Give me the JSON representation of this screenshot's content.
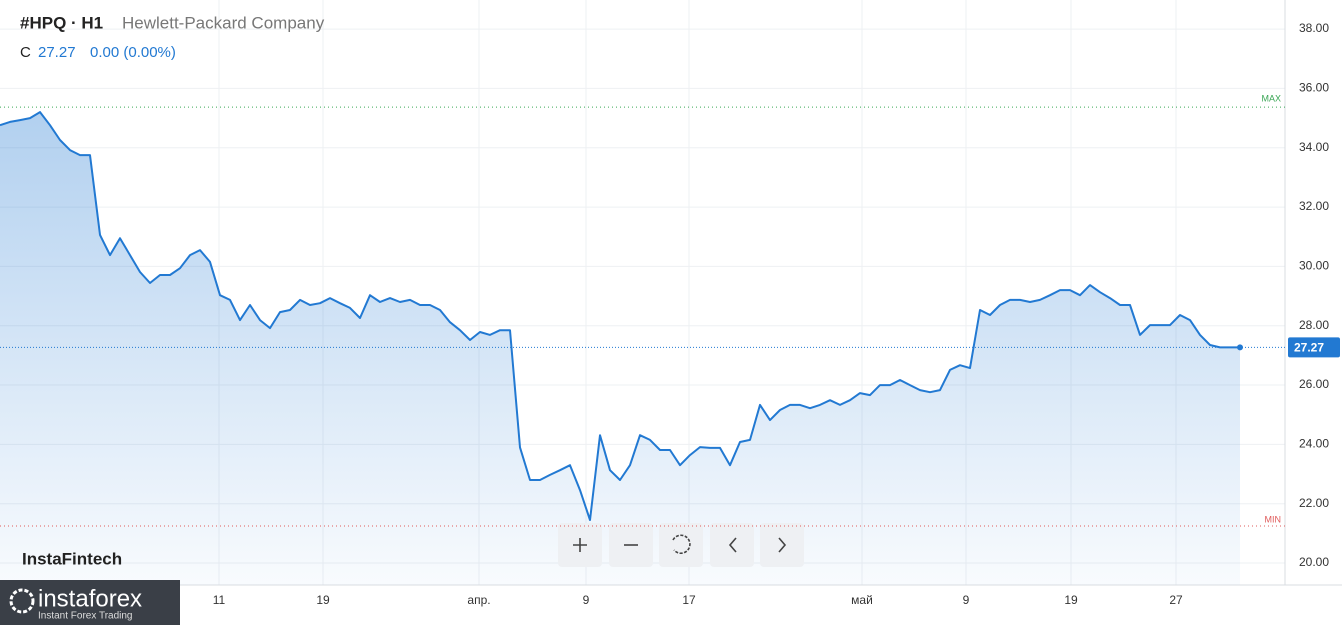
{
  "header": {
    "symbol": "#HPQ · H1",
    "company": "Hewlett-Packard Company",
    "price_prefix": "C",
    "change": "0.00 (0.00%)"
  },
  "watermark": "InstaFintech",
  "logo": {
    "name": "instaforex",
    "tagline": "Instant Forex Trading"
  },
  "chart_data": {
    "type": "line",
    "series": [
      {
        "color": "#2279d2",
        "values": [
          34.76,
          34.87,
          34.93,
          35.0,
          35.2,
          34.76,
          34.26,
          33.92,
          33.75,
          33.75,
          31.06,
          30.38,
          30.95,
          30.38,
          29.81,
          29.44,
          29.71,
          29.71,
          29.94,
          30.38,
          30.55,
          30.15,
          29.03,
          28.87,
          28.19,
          28.7,
          28.19,
          27.92,
          28.46,
          28.53,
          28.87,
          28.7,
          28.76,
          28.93,
          28.76,
          28.6,
          28.26,
          29.03,
          28.8,
          28.93,
          28.8,
          28.87,
          28.7,
          28.7,
          28.53,
          28.12,
          27.85,
          27.52,
          27.79,
          27.69,
          27.85,
          27.85,
          23.9,
          22.8,
          22.8,
          22.97,
          23.13,
          23.3,
          22.46,
          21.45,
          24.31,
          23.13,
          22.8,
          23.3,
          24.31,
          24.15,
          23.81,
          23.81,
          23.3,
          23.64,
          23.91,
          23.88,
          23.88,
          23.3,
          24.08,
          24.15,
          25.33,
          24.82,
          25.16,
          25.33,
          25.33,
          25.22,
          25.33,
          25.49,
          25.33,
          25.49,
          25.73,
          25.66,
          26.0,
          26.0,
          26.17,
          26.0,
          25.83,
          25.76,
          25.83,
          26.51,
          26.67,
          26.57,
          28.53,
          28.36,
          28.7,
          28.87,
          28.87,
          28.8,
          28.87,
          29.03,
          29.2,
          29.2,
          29.03,
          29.37,
          29.13,
          28.93,
          28.7,
          28.7,
          27.69,
          28.02,
          28.02,
          28.02,
          28.36,
          28.19,
          27.69,
          27.35,
          27.27,
          27.27,
          27.27
        ]
      }
    ],
    "xlim": [
      0,
      128.5
    ],
    "xticks": [
      {
        "value": 21.9,
        "label": "11"
      },
      {
        "value": 32.3,
        "label": "19"
      },
      {
        "value": 47.9,
        "label": "апр."
      },
      {
        "value": 58.6,
        "label": "9"
      },
      {
        "value": 68.9,
        "label": "17"
      },
      {
        "value": 86.2,
        "label": "май"
      },
      {
        "value": 96.6,
        "label": "9"
      },
      {
        "value": 107.1,
        "label": "19"
      },
      {
        "value": 117.6,
        "label": "27"
      }
    ],
    "ylim": [
      19.26,
      38.98
    ],
    "yticks": [
      {
        "value": 20,
        "label": "20.00"
      },
      {
        "value": 22,
        "label": "22.00"
      },
      {
        "value": 24,
        "label": "24.00"
      },
      {
        "value": 26,
        "label": "26.00"
      },
      {
        "value": 28,
        "label": "28.00"
      },
      {
        "value": 30,
        "label": "30.00"
      },
      {
        "value": 32,
        "label": "32.00"
      },
      {
        "value": 34,
        "label": "34.00"
      },
      {
        "value": 36,
        "label": "36.00"
      },
      {
        "value": 38,
        "label": "38.00"
      }
    ],
    "max_line": {
      "value": 35.37,
      "label": "MAX",
      "color": "#3aa655"
    },
    "min_line": {
      "value": 21.25,
      "label": "MIN",
      "color": "#e05a5a"
    },
    "grid": true
  }
}
